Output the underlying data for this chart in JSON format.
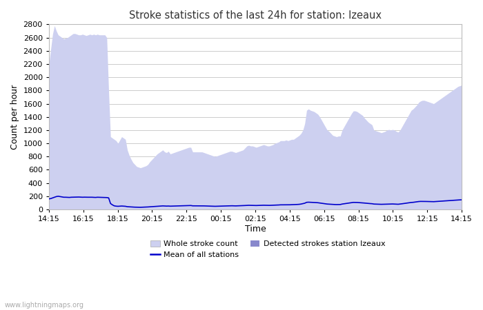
{
  "title": "Stroke statistics of the last 24h for station: Izeaux",
  "xlabel": "Time",
  "ylabel": "Count per hour",
  "watermark": "www.lightningmaps.org",
  "x_labels": [
    "14:15",
    "16:15",
    "18:15",
    "20:15",
    "22:15",
    "00:15",
    "02:15",
    "04:15",
    "06:15",
    "08:15",
    "10:15",
    "12:15",
    "14:15"
  ],
  "ylim": [
    0,
    2800
  ],
  "yticks": [
    0,
    200,
    400,
    600,
    800,
    1000,
    1200,
    1400,
    1600,
    1800,
    2000,
    2200,
    2400,
    2600,
    2800
  ],
  "whole_color": "#cdd0f0",
  "detected_color": "#8888cc",
  "mean_color": "#0000cc",
  "bg_color": "#ffffff",
  "grid_color": "#cccccc",
  "whole_stroke": [
    2190,
    2420,
    2650,
    2780,
    2700,
    2640,
    2620,
    2600,
    2580,
    2590,
    2600,
    2620,
    2640,
    2660,
    2660,
    2650,
    2640,
    2640,
    2650,
    2640,
    2630,
    2640,
    2650,
    2640,
    2650,
    2640,
    2650,
    2640,
    2640,
    2640,
    2640,
    2600,
    1800,
    1100,
    1080,
    1060,
    1040,
    1000,
    1050,
    1100,
    1080,
    1060,
    900,
    820,
    760,
    710,
    680,
    650,
    640,
    630,
    640,
    650,
    660,
    680,
    720,
    750,
    780,
    810,
    840,
    860,
    880,
    900,
    870,
    860,
    880,
    840,
    850,
    860,
    870,
    880,
    890,
    900,
    910,
    920,
    930,
    940,
    940,
    870,
    870,
    870,
    870,
    870,
    870,
    860,
    850,
    840,
    830,
    820,
    810,
    800,
    810,
    820,
    830,
    840,
    850,
    860,
    870,
    880,
    880,
    870,
    860,
    870,
    880,
    890,
    900,
    930,
    960,
    970,
    960,
    960,
    950,
    940,
    950,
    960,
    970,
    980,
    970,
    960,
    960,
    970,
    980,
    1000,
    1010,
    1020,
    1040,
    1040,
    1040,
    1050,
    1040,
    1050,
    1060,
    1060,
    1080,
    1100,
    1120,
    1150,
    1200,
    1300,
    1500,
    1520,
    1500,
    1490,
    1480,
    1460,
    1440,
    1400,
    1350,
    1300,
    1250,
    1200,
    1180,
    1150,
    1120,
    1110,
    1100,
    1110,
    1110,
    1200,
    1250,
    1300,
    1350,
    1400,
    1450,
    1490,
    1490,
    1480,
    1460,
    1440,
    1420,
    1380,
    1350,
    1320,
    1300,
    1280,
    1200,
    1190,
    1180,
    1170,
    1160,
    1170,
    1180,
    1200,
    1210,
    1200,
    1210,
    1200,
    1180,
    1170,
    1200,
    1250,
    1300,
    1350,
    1400,
    1450,
    1500,
    1520,
    1550,
    1580,
    1620,
    1640,
    1650,
    1650,
    1640,
    1630,
    1620,
    1610,
    1600,
    1620,
    1640,
    1660,
    1680,
    1700,
    1720,
    1740,
    1760,
    1780,
    1800,
    1820,
    1840,
    1860,
    1870,
    1880
  ],
  "mean_line": [
    160,
    165,
    175,
    185,
    195,
    200,
    195,
    190,
    185,
    185,
    183,
    182,
    185,
    186,
    187,
    188,
    188,
    186,
    185,
    186,
    185,
    185,
    185,
    185,
    183,
    182,
    185,
    184,
    183,
    182,
    181,
    180,
    175,
    90,
    70,
    55,
    50,
    48,
    50,
    52,
    50,
    48,
    42,
    40,
    38,
    36,
    35,
    34,
    33,
    33,
    34,
    35,
    36,
    38,
    40,
    42,
    44,
    46,
    48,
    50,
    52,
    54,
    52,
    51,
    52,
    50,
    51,
    52,
    53,
    54,
    55,
    56,
    57,
    58,
    59,
    60,
    60,
    55,
    55,
    55,
    55,
    55,
    55,
    54,
    53,
    52,
    51,
    50,
    49,
    48,
    49,
    50,
    51,
    52,
    53,
    54,
    55,
    56,
    56,
    55,
    54,
    55,
    56,
    57,
    58,
    60,
    62,
    63,
    62,
    62,
    61,
    60,
    61,
    62,
    63,
    64,
    63,
    62,
    62,
    63,
    64,
    66,
    67,
    68,
    70,
    70,
    70,
    71,
    70,
    71,
    72,
    72,
    74,
    76,
    78,
    82,
    88,
    95,
    108,
    110,
    108,
    107,
    106,
    104,
    102,
    98,
    94,
    90,
    86,
    82,
    80,
    78,
    76,
    75,
    74,
    75,
    75,
    82,
    86,
    90,
    94,
    98,
    102,
    107,
    107,
    106,
    104,
    102,
    100,
    97,
    94,
    91,
    89,
    87,
    82,
    81,
    80,
    79,
    78,
    79,
    80,
    82,
    83,
    82,
    83,
    82,
    80,
    79,
    82,
    86,
    90,
    94,
    98,
    102,
    106,
    108,
    112,
    116,
    120,
    122,
    122,
    122,
    121,
    120,
    119,
    118,
    118,
    120,
    122,
    124,
    126,
    128,
    130,
    132,
    134,
    136,
    138,
    140,
    142,
    144,
    145,
    146
  ]
}
